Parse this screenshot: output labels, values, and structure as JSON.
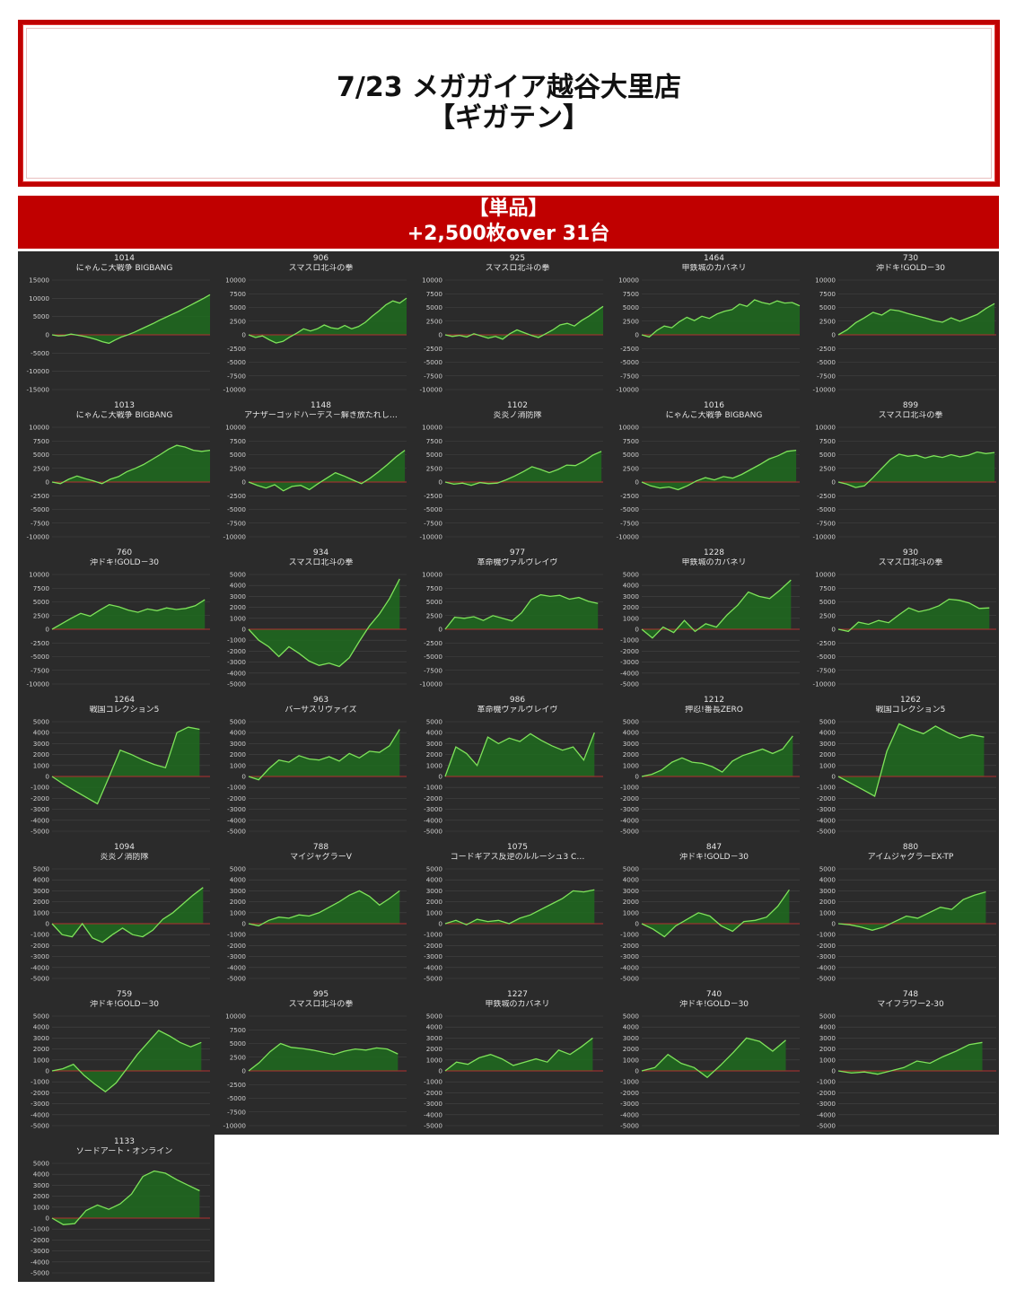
{
  "header": {
    "title_line1": "7/23 メガガイア越谷大里店",
    "title_line2": "【ギガテン】"
  },
  "banner": {
    "line1": "【単品】",
    "line2": "+2,500枚over 31台"
  },
  "colors": {
    "accent": "#c00000",
    "panel_bg": "#2b2b2b",
    "line": "#7ee35a",
    "fill": "#1e6b1e",
    "zero": "#b03030"
  },
  "chart_data": [
    {
      "type": "area",
      "number": "1014",
      "name": "にゃんこ大戦争 BIGBANG",
      "ylim": [
        -15000,
        15000
      ],
      "yticks": [
        15000,
        10000,
        5000,
        0,
        -5000,
        -10000,
        -15000
      ],
      "values": [
        0,
        -300,
        -200,
        200,
        -100,
        -400,
        -800,
        -1300,
        -1900,
        -2300,
        -1400,
        -600,
        0,
        700,
        1500,
        2300,
        3100,
        4000,
        4800,
        5600,
        6400,
        7300,
        8200,
        9100,
        10000,
        11000
      ]
    },
    {
      "type": "area",
      "number": "906",
      "name": "スマスロ北斗の拳",
      "ylim": [
        -10000,
        10000
      ],
      "yticks": [
        10000,
        7500,
        5000,
        2500,
        0,
        -2500,
        -5000,
        -7500,
        -10000
      ],
      "values": [
        0,
        -500,
        -200,
        -900,
        -1500,
        -1200,
        -400,
        300,
        1100,
        700,
        1100,
        1800,
        1300,
        1100,
        1700,
        1100,
        1500,
        2300,
        3400,
        4400,
        5500,
        6200,
        5800,
        6700
      ]
    },
    {
      "type": "area",
      "number": "925",
      "name": "スマスロ北斗の拳",
      "ylim": [
        -10000,
        10000
      ],
      "yticks": [
        10000,
        7500,
        5000,
        2500,
        0,
        -2500,
        -5000,
        -7500,
        -10000
      ],
      "values": [
        0,
        -300,
        -100,
        -400,
        200,
        -200,
        -600,
        -300,
        -800,
        200,
        900,
        400,
        -100,
        -500,
        200,
        900,
        1800,
        2100,
        1600,
        2600,
        3400,
        4300,
        5200
      ]
    },
    {
      "type": "area",
      "number": "1464",
      "name": "甲鉄城のカバネリ",
      "ylim": [
        -10000,
        10000
      ],
      "yticks": [
        10000,
        7500,
        5000,
        2500,
        0,
        -2500,
        -5000,
        -7500,
        -10000
      ],
      "values": [
        0,
        -400,
        800,
        1600,
        1300,
        2400,
        3200,
        2600,
        3400,
        3000,
        3800,
        4300,
        4600,
        5600,
        5200,
        6400,
        5900,
        5600,
        6200,
        5800,
        5900,
        5300
      ]
    },
    {
      "type": "area",
      "number": "730",
      "name": "沖ドキ!GOLD－30",
      "ylim": [
        -10000,
        10000
      ],
      "yticks": [
        10000,
        7500,
        5000,
        2500,
        0,
        -2500,
        -5000,
        -7500,
        -10000
      ],
      "values": [
        0,
        900,
        2200,
        3100,
        4100,
        3600,
        4600,
        4400,
        3900,
        3500,
        3100,
        2600,
        2300,
        3100,
        2500,
        3100,
        3700,
        4800,
        5700
      ]
    },
    {
      "type": "area",
      "number": "1013",
      "name": "にゃんこ大戦争 BIGBANG",
      "ylim": [
        -10000,
        10000
      ],
      "yticks": [
        10000,
        7500,
        5000,
        2500,
        0,
        -2500,
        -5000,
        -7500,
        -10000
      ],
      "values": [
        0,
        -300,
        500,
        1100,
        600,
        200,
        -300,
        500,
        1000,
        1900,
        2500,
        3200,
        4100,
        5000,
        6000,
        6700,
        6400,
        5800,
        5600,
        5800
      ]
    },
    {
      "type": "area",
      "number": "1148",
      "name": "アナザーゴッドハーデス－解き放たれし…",
      "ylim": [
        -10000,
        10000
      ],
      "yticks": [
        10000,
        7500,
        5000,
        2500,
        0,
        -2500,
        -5000,
        -7500,
        -10000
      ],
      "values": [
        0,
        -600,
        -1100,
        -500,
        -1600,
        -800,
        -600,
        -1400,
        -300,
        700,
        1700,
        1100,
        400,
        -300,
        700,
        1900,
        3200,
        4600,
        5800
      ]
    },
    {
      "type": "area",
      "number": "1102",
      "name": "炎炎ノ消防隊",
      "ylim": [
        -10000,
        10000
      ],
      "yticks": [
        10000,
        7500,
        5000,
        2500,
        0,
        -2500,
        -5000,
        -7500,
        -10000
      ],
      "values": [
        0,
        -400,
        -200,
        -600,
        -100,
        -300,
        -200,
        400,
        1100,
        1900,
        2800,
        2300,
        1700,
        2300,
        3100,
        3000,
        3800,
        4900,
        5600
      ]
    },
    {
      "type": "area",
      "number": "1016",
      "name": "にゃんこ大戦争 BIGBANG",
      "ylim": [
        -10000,
        10000
      ],
      "yticks": [
        10000,
        7500,
        5000,
        2500,
        0,
        -2500,
        -5000,
        -7500,
        -10000
      ],
      "values": [
        0,
        -700,
        -1100,
        -900,
        -1400,
        -700,
        200,
        800,
        400,
        1000,
        700,
        1400,
        2300,
        3200,
        4200,
        4800,
        5600,
        5800
      ]
    },
    {
      "type": "area",
      "number": "899",
      "name": "スマスロ北斗の拳",
      "ylim": [
        -10000,
        10000
      ],
      "yticks": [
        10000,
        7500,
        5000,
        2500,
        0,
        -2500,
        -5000,
        -7500,
        -10000
      ],
      "values": [
        0,
        -400,
        -1000,
        -700,
        800,
        2500,
        4100,
        5100,
        4700,
        4900,
        4400,
        4800,
        4500,
        5000,
        4600,
        4900,
        5500,
        5200,
        5400
      ]
    },
    {
      "type": "area",
      "number": "760",
      "name": "沖ドキ!GOLD－30",
      "ylim": [
        -10000,
        10000
      ],
      "yticks": [
        10000,
        7500,
        5000,
        2500,
        0,
        -2500,
        -5000,
        -7500,
        -10000
      ],
      "values": [
        0,
        1000,
        2000,
        2900,
        2400,
        3500,
        4500,
        4100,
        3500,
        3100,
        3700,
        3400,
        3900,
        3600,
        3800,
        4300,
        5400
      ]
    },
    {
      "type": "area",
      "number": "934",
      "name": "スマスロ北斗の拳",
      "ylim": [
        -5000,
        5000
      ],
      "yticks": [
        5000,
        4000,
        3000,
        2000,
        1000,
        0,
        -1000,
        -2000,
        -3000,
        -4000,
        -5000
      ],
      "values": [
        0,
        -1000,
        -1600,
        -2500,
        -1600,
        -2200,
        -2900,
        -3300,
        -3100,
        -3400,
        -2600,
        -1100,
        300,
        1400,
        2800,
        4600
      ]
    },
    {
      "type": "area",
      "number": "977",
      "name": "革命機ヴァルヴレイヴ",
      "ylim": [
        -10000,
        10000
      ],
      "yticks": [
        10000,
        7500,
        5000,
        2500,
        0,
        -2500,
        -5000,
        -7500,
        -10000
      ],
      "values": [
        0,
        2200,
        2000,
        2300,
        1600,
        2500,
        2000,
        1500,
        3000,
        5400,
        6300,
        6000,
        6200,
        5500,
        5800,
        5100,
        4700
      ]
    },
    {
      "type": "area",
      "number": "1228",
      "name": "甲鉄城のカバネリ",
      "ylim": [
        -5000,
        5000
      ],
      "yticks": [
        5000,
        4000,
        3000,
        2000,
        1000,
        0,
        -1000,
        -2000,
        -3000,
        -4000,
        -5000
      ],
      "values": [
        0,
        -800,
        200,
        -300,
        800,
        -200,
        500,
        200,
        1300,
        2200,
        3400,
        3000,
        2800,
        3600,
        4500
      ]
    },
    {
      "type": "area",
      "number": "930",
      "name": "スマスロ北斗の拳",
      "ylim": [
        -10000,
        10000
      ],
      "yticks": [
        10000,
        7500,
        5000,
        2500,
        0,
        -2500,
        -5000,
        -7500,
        -10000
      ],
      "values": [
        0,
        -400,
        1300,
        900,
        1600,
        1200,
        2600,
        3900,
        3200,
        3600,
        4300,
        5500,
        5300,
        4800,
        3800,
        3900
      ]
    },
    {
      "type": "area",
      "number": "1264",
      "name": "戦国コレクション5",
      "ylim": [
        -5000,
        5000
      ],
      "yticks": [
        5000,
        4000,
        3000,
        2000,
        1000,
        0,
        -1000,
        -2000,
        -3000,
        -4000,
        -5000
      ],
      "values": [
        0,
        -700,
        -1300,
        -1900,
        -2500,
        -100,
        2400,
        2000,
        1500,
        1100,
        800,
        4000,
        4500,
        4300
      ]
    },
    {
      "type": "area",
      "number": "963",
      "name": "バーサスリヴァイズ",
      "ylim": [
        -5000,
        5000
      ],
      "yticks": [
        5000,
        4000,
        3000,
        2000,
        1000,
        0,
        -1000,
        -2000,
        -3000,
        -4000,
        -5000
      ],
      "values": [
        0,
        -300,
        700,
        1500,
        1300,
        1900,
        1600,
        1500,
        1800,
        1400,
        2100,
        1700,
        2300,
        2200,
        2800,
        4300
      ]
    },
    {
      "type": "area",
      "number": "986",
      "name": "革命機ヴァルヴレイヴ",
      "ylim": [
        -5000,
        5000
      ],
      "yticks": [
        5000,
        4000,
        3000,
        2000,
        1000,
        0,
        -1000,
        -2000,
        -3000,
        -4000,
        -5000
      ],
      "values": [
        0,
        2700,
        2100,
        1000,
        3600,
        3000,
        3500,
        3200,
        3900,
        3300,
        2800,
        2400,
        2700,
        1500,
        4000
      ]
    },
    {
      "type": "area",
      "number": "1212",
      "name": "押忍!番長ZERO",
      "ylim": [
        -5000,
        5000
      ],
      "yticks": [
        5000,
        4000,
        3000,
        2000,
        1000,
        0,
        -1000,
        -2000,
        -3000,
        -4000,
        -5000
      ],
      "values": [
        0,
        200,
        600,
        1300,
        1700,
        1300,
        1200,
        900,
        400,
        1400,
        1900,
        2200,
        2500,
        2100,
        2500,
        3700
      ]
    },
    {
      "type": "area",
      "number": "1262",
      "name": "戦国コレクション5",
      "ylim": [
        -5000,
        5000
      ],
      "yticks": [
        5000,
        4000,
        3000,
        2000,
        1000,
        0,
        -1000,
        -2000,
        -3000,
        -4000,
        -5000
      ],
      "values": [
        0,
        -600,
        -1200,
        -1800,
        2300,
        4800,
        4300,
        3900,
        4600,
        4000,
        3500,
        3800,
        3600
      ]
    },
    {
      "type": "area",
      "number": "1094",
      "name": "炎炎ノ消防隊",
      "ylim": [
        -5000,
        5000
      ],
      "yticks": [
        5000,
        4000,
        3000,
        2000,
        1000,
        0,
        -1000,
        -2000,
        -3000,
        -4000,
        -5000
      ],
      "values": [
        0,
        -1000,
        -1200,
        0,
        -1300,
        -1700,
        -1000,
        -400,
        -1000,
        -1200,
        -600,
        400,
        1000,
        1800,
        2600,
        3300
      ]
    },
    {
      "type": "area",
      "number": "788",
      "name": "マイジャグラーV",
      "ylim": [
        -5000,
        5000
      ],
      "yticks": [
        5000,
        4000,
        3000,
        2000,
        1000,
        0,
        -1000,
        -2000,
        -3000,
        -4000,
        -5000
      ],
      "values": [
        0,
        -200,
        300,
        600,
        500,
        800,
        700,
        1000,
        1500,
        2000,
        2600,
        3000,
        2500,
        1700,
        2300,
        3000
      ]
    },
    {
      "type": "area",
      "number": "1075",
      "name": "コードギアス反逆のルルーシュ3 C…",
      "ylim": [
        -5000,
        5000
      ],
      "yticks": [
        5000,
        4000,
        3000,
        2000,
        1000,
        0,
        -1000,
        -2000,
        -3000,
        -4000,
        -5000
      ],
      "values": [
        0,
        300,
        -100,
        400,
        200,
        300,
        0,
        500,
        800,
        1300,
        1800,
        2300,
        3000,
        2900,
        3100
      ]
    },
    {
      "type": "area",
      "number": "847",
      "name": "沖ドキ!GOLD－30",
      "ylim": [
        -5000,
        5000
      ],
      "yticks": [
        5000,
        4000,
        3000,
        2000,
        1000,
        0,
        -1000,
        -2000,
        -3000,
        -4000,
        -5000
      ],
      "values": [
        0,
        -500,
        -1200,
        -200,
        400,
        1000,
        700,
        -200,
        -700,
        200,
        300,
        600,
        1600,
        3100
      ]
    },
    {
      "type": "area",
      "number": "880",
      "name": "アイムジャグラーEX-TP",
      "ylim": [
        -5000,
        5000
      ],
      "yticks": [
        5000,
        4000,
        3000,
        2000,
        1000,
        0,
        -1000,
        -2000,
        -3000,
        -4000,
        -5000
      ],
      "values": [
        0,
        -100,
        -300,
        -600,
        -300,
        200,
        700,
        500,
        1000,
        1500,
        1300,
        2200,
        2600,
        2900
      ]
    },
    {
      "type": "area",
      "number": "759",
      "name": "沖ドキ!GOLD－30",
      "ylim": [
        -5000,
        5000
      ],
      "yticks": [
        5000,
        4000,
        3000,
        2000,
        1000,
        0,
        -1000,
        -2000,
        -3000,
        -4000,
        -5000
      ],
      "values": [
        0,
        200,
        600,
        -400,
        -1200,
        -1900,
        -1100,
        200,
        1500,
        2600,
        3700,
        3200,
        2600,
        2200,
        2600
      ]
    },
    {
      "type": "area",
      "number": "995",
      "name": "スマスロ北斗の拳",
      "ylim": [
        -10000,
        10000
      ],
      "yticks": [
        10000,
        7500,
        5000,
        2500,
        0,
        -2500,
        -5000,
        -7500,
        -10000
      ],
      "values": [
        0,
        1500,
        3500,
        5000,
        4300,
        4100,
        3800,
        3400,
        3000,
        3600,
        4000,
        3800,
        4200,
        4000,
        3100
      ]
    },
    {
      "type": "area",
      "number": "1227",
      "name": "甲鉄城のカバネリ",
      "ylim": [
        -5000,
        5000
      ],
      "yticks": [
        5000,
        4000,
        3000,
        2000,
        1000,
        0,
        -1000,
        -2000,
        -3000,
        -4000,
        -5000
      ],
      "values": [
        0,
        800,
        600,
        1200,
        1500,
        1100,
        500,
        800,
        1100,
        800,
        1900,
        1500,
        2200,
        3000
      ]
    },
    {
      "type": "area",
      "number": "740",
      "name": "沖ドキ!GOLD－30",
      "ylim": [
        -5000,
        5000
      ],
      "yticks": [
        5000,
        4000,
        3000,
        2000,
        1000,
        0,
        -1000,
        -2000,
        -3000,
        -4000,
        -5000
      ],
      "values": [
        0,
        300,
        1500,
        700,
        300,
        -600,
        500,
        1700,
        3000,
        2700,
        1800,
        2800
      ]
    },
    {
      "type": "area",
      "number": "748",
      "name": "マイフラワー2-30",
      "ylim": [
        -5000,
        5000
      ],
      "yticks": [
        5000,
        4000,
        3000,
        2000,
        1000,
        0,
        -1000,
        -2000,
        -3000,
        -4000,
        -5000
      ],
      "values": [
        0,
        -200,
        -100,
        -300,
        0,
        300,
        900,
        700,
        1300,
        1800,
        2400,
        2600
      ]
    },
    {
      "type": "area",
      "number": "1133",
      "name": "ソードアート・オンライン",
      "ylim": [
        -5000,
        5000
      ],
      "yticks": [
        5000,
        4000,
        3000,
        2000,
        1000,
        0,
        -1000,
        -2000,
        -3000,
        -4000,
        -5000
      ],
      "values": [
        0,
        -600,
        -500,
        700,
        1200,
        800,
        1300,
        2200,
        3800,
        4300,
        4100,
        3500,
        3000,
        2500
      ]
    }
  ]
}
